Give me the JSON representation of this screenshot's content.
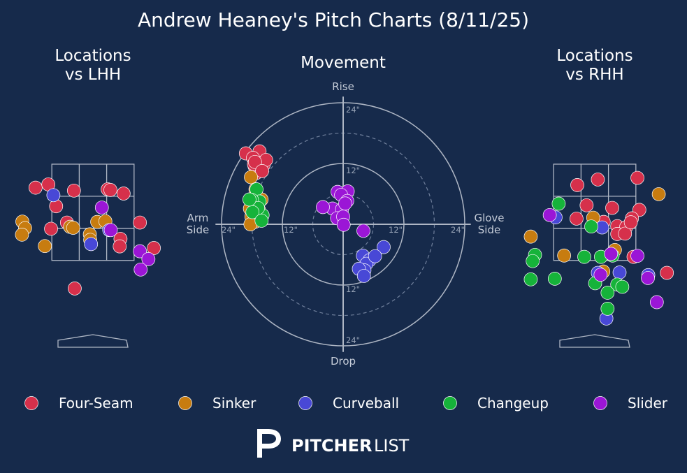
{
  "title": "Andrew Heaney's Pitch Charts (8/11/25)",
  "colors": {
    "background": "#162a4b",
    "Four-Seam": "#d6304b",
    "Sinker": "#c77c10",
    "Curveball": "#4848d6",
    "Changeup": "#16b33a",
    "Slider": "#9b16d6"
  },
  "legend": [
    "Four-Seam",
    "Sinker",
    "Curveball",
    "Changeup",
    "Slider"
  ],
  "brand": {
    "mark": "P",
    "bold": "PITCHER",
    "light": "LIST"
  },
  "chart_data": [
    {
      "type": "scatter",
      "id": "lhh",
      "title": "Locations\nvs LHH",
      "xlim": [
        -1.75,
        1.75
      ],
      "ylim": [
        0.0,
        5.0
      ],
      "points": [
        {
          "pitch": "Four-Seam",
          "x": -1.48,
          "y": 4.12
        },
        {
          "pitch": "Four-Seam",
          "x": -1.15,
          "y": 4.22
        },
        {
          "pitch": "Four-Seam",
          "x": -0.49,
          "y": 4.03
        },
        {
          "pitch": "Four-Seam",
          "x": 0.38,
          "y": 4.07
        },
        {
          "pitch": "Four-Seam",
          "x": 0.45,
          "y": 4.05
        },
        {
          "pitch": "Four-Seam",
          "x": 0.79,
          "y": 3.94
        },
        {
          "pitch": "Four-Seam",
          "x": -0.95,
          "y": 3.55
        },
        {
          "pitch": "Four-Seam",
          "x": -0.67,
          "y": 3.05
        },
        {
          "pitch": "Four-Seam",
          "x": -1.08,
          "y": 2.86
        },
        {
          "pitch": "Four-Seam",
          "x": 1.21,
          "y": 3.05
        },
        {
          "pitch": "Four-Seam",
          "x": 0.71,
          "y": 2.55
        },
        {
          "pitch": "Four-Seam",
          "x": 0.69,
          "y": 2.32
        },
        {
          "pitch": "Four-Seam",
          "x": 1.57,
          "y": 2.27
        },
        {
          "pitch": "Four-Seam",
          "x": -0.47,
          "y": 1.03
        },
        {
          "pitch": "Sinker",
          "x": -1.82,
          "y": 3.08
        },
        {
          "pitch": "Sinker",
          "x": -1.75,
          "y": 2.88
        },
        {
          "pitch": "Sinker",
          "x": -1.83,
          "y": 2.68
        },
        {
          "pitch": "Sinker",
          "x": -1.24,
          "y": 2.33
        },
        {
          "pitch": "Sinker",
          "x": -0.59,
          "y": 2.92
        },
        {
          "pitch": "Sinker",
          "x": -0.51,
          "y": 2.89
        },
        {
          "pitch": "Sinker",
          "x": 0.11,
          "y": 3.07
        },
        {
          "pitch": "Sinker",
          "x": 0.32,
          "y": 3.09
        },
        {
          "pitch": "Sinker",
          "x": -0.08,
          "y": 2.69
        },
        {
          "pitch": "Sinker",
          "x": -0.07,
          "y": 2.52
        },
        {
          "pitch": "Curveball",
          "x": -1.02,
          "y": 3.89
        },
        {
          "pitch": "Curveball",
          "x": 0.42,
          "y": 2.82
        },
        {
          "pitch": "Curveball",
          "x": -0.05,
          "y": 2.39
        },
        {
          "pitch": "Slider",
          "x": 0.23,
          "y": 3.51
        },
        {
          "pitch": "Slider",
          "x": 0.46,
          "y": 2.82
        },
        {
          "pitch": "Slider",
          "x": 1.21,
          "y": 2.17
        },
        {
          "pitch": "Slider",
          "x": 1.43,
          "y": 1.93
        },
        {
          "pitch": "Slider",
          "x": 1.23,
          "y": 1.61
        }
      ]
    },
    {
      "type": "scatter",
      "id": "movement",
      "title": "Movement",
      "xlabel_left": "Arm\nSide",
      "xlabel_right": "Glove\nSide",
      "ylabel_top": "Rise",
      "ylabel_bottom": "Drop",
      "ring_labels": [
        "24\"",
        "12\"",
        "12\"",
        "24\"",
        "24\"",
        "12\"",
        "12\"",
        "24\""
      ],
      "xlim": [
        -24,
        24
      ],
      "ylim": [
        -24,
        24
      ],
      "points": [
        {
          "pitch": "Four-Seam",
          "x": -19.2,
          "y": 14.0
        },
        {
          "pitch": "Four-Seam",
          "x": -16.5,
          "y": 14.4
        },
        {
          "pitch": "Four-Seam",
          "x": -17.8,
          "y": 13.1
        },
        {
          "pitch": "Four-Seam",
          "x": -16.2,
          "y": 12.1
        },
        {
          "pitch": "Four-Seam",
          "x": -17.5,
          "y": 11.5
        },
        {
          "pitch": "Four-Seam",
          "x": -16.8,
          "y": 11.2
        },
        {
          "pitch": "Four-Seam",
          "x": -17.2,
          "y": 10.1
        },
        {
          "pitch": "Four-Seam",
          "x": -15.7,
          "y": 11.7
        },
        {
          "pitch": "Four-Seam",
          "x": -15.2,
          "y": 12.7
        },
        {
          "pitch": "Four-Seam",
          "x": -17.6,
          "y": 11.9
        },
        {
          "pitch": "Four-Seam",
          "x": -17.4,
          "y": 12.3
        },
        {
          "pitch": "Four-Seam",
          "x": -16.0,
          "y": 10.5
        },
        {
          "pitch": "Sinker",
          "x": -18.2,
          "y": 9.3
        },
        {
          "pitch": "Sinker",
          "x": -17.3,
          "y": 6.9
        },
        {
          "pitch": "Sinker",
          "x": -16.1,
          "y": 4.9
        },
        {
          "pitch": "Sinker",
          "x": -18.4,
          "y": 3.1
        },
        {
          "pitch": "Sinker",
          "x": -16.6,
          "y": 2.8
        },
        {
          "pitch": "Sinker",
          "x": -18.1,
          "y": 1.5
        },
        {
          "pitch": "Sinker",
          "x": -17.4,
          "y": 0.5
        },
        {
          "pitch": "Sinker",
          "x": -18.3,
          "y": 0.0
        },
        {
          "pitch": "Curveball",
          "x": 3.9,
          "y": -6.2
        },
        {
          "pitch": "Curveball",
          "x": 5.2,
          "y": -7.1
        },
        {
          "pitch": "Curveball",
          "x": 8.0,
          "y": -4.5
        },
        {
          "pitch": "Curveball",
          "x": 4.6,
          "y": -7.8
        },
        {
          "pitch": "Curveball",
          "x": 4.2,
          "y": -9.1
        },
        {
          "pitch": "Curveball",
          "x": 6.3,
          "y": -6.3
        },
        {
          "pitch": "Curveball",
          "x": 3.1,
          "y": -8.8
        },
        {
          "pitch": "Curveball",
          "x": 4.1,
          "y": -10.2
        },
        {
          "pitch": "Changeup",
          "x": -17.1,
          "y": 6.9
        },
        {
          "pitch": "Changeup",
          "x": -16.5,
          "y": 4.5
        },
        {
          "pitch": "Changeup",
          "x": -18.0,
          "y": 4.8
        },
        {
          "pitch": "Changeup",
          "x": -15.9,
          "y": 1.8
        },
        {
          "pitch": "Changeup",
          "x": -16.8,
          "y": 3.2
        },
        {
          "pitch": "Changeup",
          "x": -17.9,
          "y": 2.4
        },
        {
          "pitch": "Changeup",
          "x": -16.1,
          "y": 0.7
        },
        {
          "pitch": "Changeup",
          "x": -18.5,
          "y": 4.9
        },
        {
          "pitch": "Slider",
          "x": -1.1,
          "y": 6.4
        },
        {
          "pitch": "Slider",
          "x": 0.9,
          "y": 6.5
        },
        {
          "pitch": "Slider",
          "x": -0.4,
          "y": 5.8
        },
        {
          "pitch": "Slider",
          "x": -2.1,
          "y": 3.1
        },
        {
          "pitch": "Slider",
          "x": -0.2,
          "y": 3.0
        },
        {
          "pitch": "Slider",
          "x": 0.8,
          "y": 4.6
        },
        {
          "pitch": "Slider",
          "x": -4.0,
          "y": 3.4
        },
        {
          "pitch": "Slider",
          "x": -1.2,
          "y": 1.2
        },
        {
          "pitch": "Slider",
          "x": 0.0,
          "y": 1.5
        },
        {
          "pitch": "Slider",
          "x": 0.1,
          "y": -0.1
        },
        {
          "pitch": "Slider",
          "x": 4.0,
          "y": -1.3
        },
        {
          "pitch": "Slider",
          "x": 0.4,
          "y": 4.1
        }
      ]
    },
    {
      "type": "scatter",
      "id": "rhh",
      "title": "Locations\nvs RHH",
      "xlim": [
        -1.75,
        1.75
      ],
      "ylim": [
        0.0,
        5.0
      ],
      "points": [
        {
          "pitch": "Four-Seam",
          "x": -0.45,
          "y": 4.2
        },
        {
          "pitch": "Four-Seam",
          "x": 0.08,
          "y": 4.37
        },
        {
          "pitch": "Four-Seam",
          "x": 1.1,
          "y": 4.42
        },
        {
          "pitch": "Four-Seam",
          "x": -0.21,
          "y": 3.58
        },
        {
          "pitch": "Four-Seam",
          "x": 0.45,
          "y": 3.5
        },
        {
          "pitch": "Four-Seam",
          "x": 1.15,
          "y": 3.44
        },
        {
          "pitch": "Four-Seam",
          "x": -0.47,
          "y": 3.17
        },
        {
          "pitch": "Four-Seam",
          "x": 0.23,
          "y": 3.07
        },
        {
          "pitch": "Four-Seam",
          "x": 0.58,
          "y": 2.94
        },
        {
          "pitch": "Four-Seam",
          "x": 0.81,
          "y": 2.91
        },
        {
          "pitch": "Four-Seam",
          "x": 0.58,
          "y": 2.7
        },
        {
          "pitch": "Four-Seam",
          "x": 0.78,
          "y": 2.71
        },
        {
          "pitch": "Four-Seam",
          "x": 0.96,
          "y": 3.18
        },
        {
          "pitch": "Four-Seam",
          "x": 0.93,
          "y": 3.06
        },
        {
          "pitch": "Four-Seam",
          "x": 1.0,
          "y": 2.0
        },
        {
          "pitch": "Four-Seam",
          "x": 1.86,
          "y": 1.51
        },
        {
          "pitch": "Sinker",
          "x": 1.65,
          "y": 3.92
        },
        {
          "pitch": "Sinker",
          "x": -1.65,
          "y": 2.62
        },
        {
          "pitch": "Sinker",
          "x": -0.79,
          "y": 2.04
        },
        {
          "pitch": "Sinker",
          "x": -0.04,
          "y": 3.2
        },
        {
          "pitch": "Sinker",
          "x": 0.52,
          "y": 2.21
        },
        {
          "pitch": "Sinker",
          "x": 0.22,
          "y": 1.55
        },
        {
          "pitch": "Curveball",
          "x": -1.01,
          "y": 3.21
        },
        {
          "pitch": "Curveball",
          "x": 0.19,
          "y": 2.9
        },
        {
          "pitch": "Curveball",
          "x": 0.08,
          "y": 1.51
        },
        {
          "pitch": "Curveball",
          "x": 0.64,
          "y": 1.52
        },
        {
          "pitch": "Curveball",
          "x": 1.38,
          "y": 1.44
        },
        {
          "pitch": "Curveball",
          "x": 0.3,
          "y": 0.11
        },
        {
          "pitch": "Changeup",
          "x": -0.93,
          "y": 3.63
        },
        {
          "pitch": "Changeup",
          "x": -0.09,
          "y": 2.93
        },
        {
          "pitch": "Changeup",
          "x": -1.54,
          "y": 2.06
        },
        {
          "pitch": "Changeup",
          "x": -1.6,
          "y": 1.87
        },
        {
          "pitch": "Changeup",
          "x": -0.27,
          "y": 2.0
        },
        {
          "pitch": "Changeup",
          "x": 0.16,
          "y": 2.0
        },
        {
          "pitch": "Changeup",
          "x": 0.46,
          "y": 2.04
        },
        {
          "pitch": "Changeup",
          "x": -1.65,
          "y": 1.31
        },
        {
          "pitch": "Changeup",
          "x": -1.03,
          "y": 1.33
        },
        {
          "pitch": "Changeup",
          "x": 0.01,
          "y": 1.19
        },
        {
          "pitch": "Changeup",
          "x": 0.58,
          "y": 1.15
        },
        {
          "pitch": "Changeup",
          "x": 0.71,
          "y": 1.08
        },
        {
          "pitch": "Changeup",
          "x": 0.33,
          "y": 0.9
        },
        {
          "pitch": "Changeup",
          "x": 0.33,
          "y": 0.41
        },
        {
          "pitch": "Slider",
          "x": -1.16,
          "y": 3.28
        },
        {
          "pitch": "Slider",
          "x": 0.42,
          "y": 2.09
        },
        {
          "pitch": "Slider",
          "x": 1.1,
          "y": 2.03
        },
        {
          "pitch": "Slider",
          "x": 0.15,
          "y": 1.45
        },
        {
          "pitch": "Slider",
          "x": 1.37,
          "y": 1.35
        },
        {
          "pitch": "Slider",
          "x": 1.6,
          "y": 0.61
        }
      ]
    }
  ]
}
